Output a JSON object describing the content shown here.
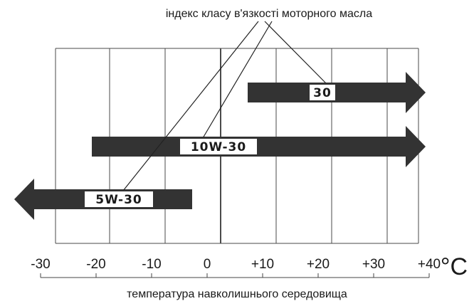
{
  "caption_top": "індекс класу в'язкості моторного масла",
  "caption_bottom": "температура навколишнього середовища",
  "unit": "°C",
  "scale": {
    "ticks": [
      -30,
      -20,
      -10,
      0,
      10,
      20,
      30,
      40
    ],
    "tick_labels": [
      "-30",
      "-20",
      "-10",
      "0",
      "+10",
      "+20",
      "+30",
      "+40"
    ]
  },
  "oils": [
    {
      "label": "30",
      "from": 10,
      "to": 40,
      "arrow": "right"
    },
    {
      "label": "10W-30",
      "from": -20,
      "to": 40,
      "arrow": "right"
    },
    {
      "label": "5W-30",
      "from": -30,
      "to": 0,
      "arrow": "left"
    }
  ],
  "colors": {
    "bar": "#333333",
    "grid": "#4a4a4a",
    "text": "#1a1a1a"
  }
}
